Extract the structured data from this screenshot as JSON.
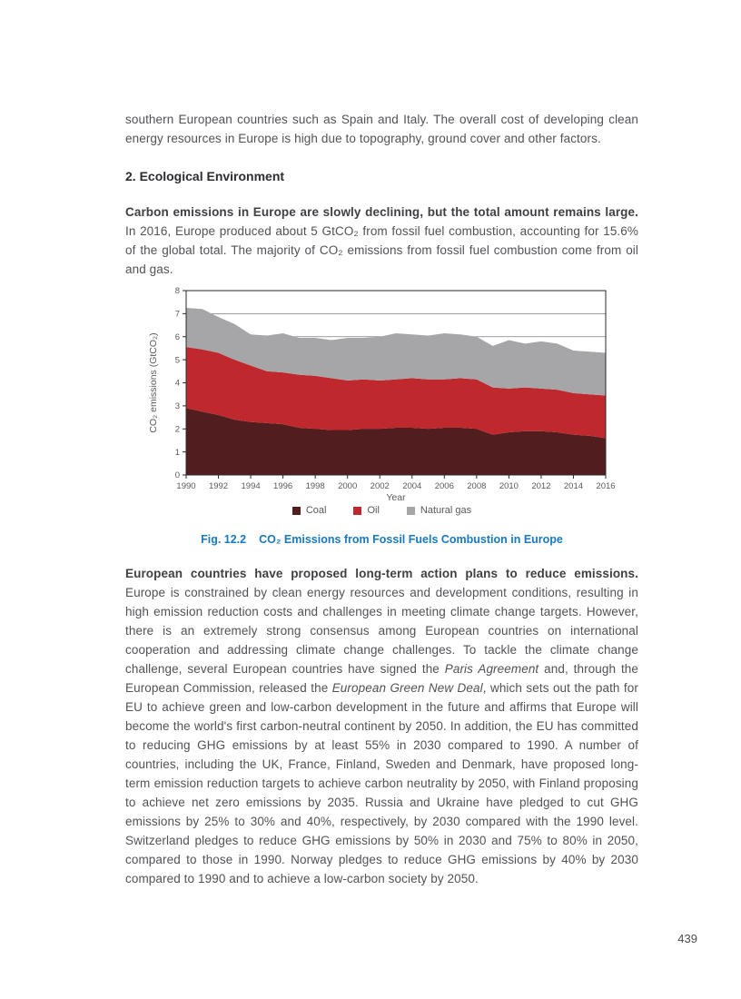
{
  "page": {
    "number": "439"
  },
  "intro_paragraph": "southern European countries such as Spain and Italy. The overall cost of developing clean energy resources in Europe is high due to topography, ground cover and other factors.",
  "section": {
    "heading": "2. Ecological Environment"
  },
  "carbon_paragraph": {
    "lead": "Carbon emissions in Europe are slowly declining, but the total amount remains large.",
    "rest": " In 2016, Europe produced about 5 GtCO₂ from fossil fuel combustion, accounting for 15.6% of the global total. The majority of CO₂ emissions from fossil fuel combustion come from oil and gas."
  },
  "figure": {
    "caption_label": "Fig. 12.2",
    "caption_title": "CO₂ Emissions from Fossil Fuels Combustion in Europe",
    "caption_color": "#1879be"
  },
  "chart_data": {
    "type": "area",
    "stacked": true,
    "title": "",
    "xlabel": "Year",
    "ylabel": "CO₂ emissions (GtCO₂)",
    "ylim": [
      0,
      8
    ],
    "yticks": [
      0,
      1,
      2,
      3,
      4,
      5,
      6,
      7,
      8
    ],
    "xticks": [
      1990,
      1992,
      1994,
      1996,
      1998,
      2000,
      2002,
      2004,
      2006,
      2008,
      2010,
      2012,
      2014,
      2016
    ],
    "grid": true,
    "legend_position": "bottom",
    "frame_color": "#2b292a",
    "grid_color": "#7e7e80",
    "x": [
      1990,
      1991,
      1992,
      1993,
      1994,
      1995,
      1996,
      1997,
      1998,
      1999,
      2000,
      2001,
      2002,
      2003,
      2004,
      2005,
      2006,
      2007,
      2008,
      2009,
      2010,
      2011,
      2012,
      2013,
      2014,
      2015,
      2016
    ],
    "series": [
      {
        "name": "Coal",
        "color": "#511d1f",
        "values": [
          2.9,
          2.75,
          2.6,
          2.4,
          2.3,
          2.25,
          2.2,
          2.05,
          2.0,
          1.95,
          1.95,
          2.0,
          2.0,
          2.05,
          2.05,
          2.0,
          2.05,
          2.05,
          2.0,
          1.75,
          1.85,
          1.9,
          1.9,
          1.85,
          1.75,
          1.7,
          1.6
        ]
      },
      {
        "name": "Oil",
        "color": "#bf282d",
        "values": [
          2.65,
          2.7,
          2.7,
          2.6,
          2.45,
          2.25,
          2.25,
          2.3,
          2.3,
          2.25,
          2.15,
          2.15,
          2.1,
          2.1,
          2.15,
          2.15,
          2.1,
          2.15,
          2.15,
          2.05,
          1.9,
          1.9,
          1.85,
          1.85,
          1.8,
          1.8,
          1.85
        ]
      },
      {
        "name": "Natural gas",
        "color": "#a6a5a7",
        "values": [
          1.7,
          1.75,
          1.55,
          1.55,
          1.35,
          1.55,
          1.7,
          1.6,
          1.65,
          1.65,
          1.85,
          1.8,
          1.9,
          2.0,
          1.9,
          1.9,
          2.0,
          1.9,
          1.85,
          1.8,
          2.1,
          1.9,
          2.05,
          2.0,
          1.85,
          1.85,
          1.85
        ]
      }
    ]
  },
  "plans_paragraph": {
    "lead": "European countries have proposed long-term action plans to reduce emissions.",
    "segments": [
      {
        "text": " Europe is constrained by clean energy resources and development conditions, resulting in high emission reduction costs and challenges in meeting climate change targets. However, there is an extremely strong consensus among European countries on international cooperation and addressing climate change challenges. To tackle the climate change challenge, several European countries have signed the ",
        "italic": false
      },
      {
        "text": "Paris Agreement",
        "italic": true
      },
      {
        "text": " and, through the European Commission, released the ",
        "italic": false
      },
      {
        "text": "European Green New Deal",
        "italic": true
      },
      {
        "text": ", which sets out the path for EU to achieve green and low-carbon development in the future and affirms that Europe will become the world's first carbon-neutral continent by 2050. In addition, the EU has committed to reducing GHG emissions by at least 55% in 2030 compared to 1990. A number of countries, including the UK, France, Finland, Sweden and Denmark, have proposed long-term emission reduction targets to achieve carbon neutrality by 2050, with Finland proposing to achieve net zero emissions by 2035. Russia and Ukraine have pledged to cut GHG emissions by 25% to 30% and 40%, respectively, by 2030 compared with the 1990 level. Switzerland pledges to reduce GHG emissions by 50% in 2030 and 75% to 80% in 2050, compared to those in 1990. Norway pledges to reduce GHG emissions by 40% by 2030 compared to 1990 and to achieve a low-carbon society by 2050.",
        "italic": false
      }
    ]
  }
}
